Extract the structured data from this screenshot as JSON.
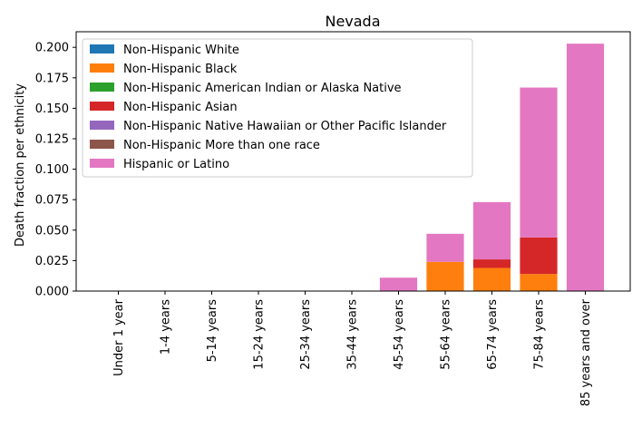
{
  "chart_data": {
    "type": "bar",
    "stacked": true,
    "title": "Nevada",
    "xlabel": "",
    "ylabel": "Death fraction per ethnicity",
    "ylim": [
      0,
      0.2128
    ],
    "yticks": [
      "0.000",
      "0.025",
      "0.050",
      "0.075",
      "0.100",
      "0.125",
      "0.150",
      "0.175",
      "0.200"
    ],
    "grid": false,
    "legend_position": "top-left",
    "categories": [
      "Under 1 year",
      "1-4 years",
      "5-14 years",
      "15-24 years",
      "25-34 years",
      "35-44 years",
      "45-54 years",
      "55-64 years",
      "65-74 years",
      "75-84 years",
      "85 years and over"
    ],
    "series": [
      {
        "name": "Non-Hispanic White",
        "color": "#1f77b4",
        "values": [
          0,
          0,
          0,
          0,
          0,
          0,
          0,
          0,
          0,
          0,
          0
        ]
      },
      {
        "name": "Non-Hispanic Black",
        "color": "#ff7f0e",
        "values": [
          0,
          0,
          0,
          0,
          0,
          0,
          0,
          0.024,
          0.019,
          0.014,
          0
        ]
      },
      {
        "name": "Non-Hispanic American Indian or Alaska Native",
        "color": "#2ca02c",
        "values": [
          0,
          0,
          0,
          0,
          0,
          0,
          0,
          0,
          0,
          0,
          0
        ]
      },
      {
        "name": "Non-Hispanic Asian",
        "color": "#d62728",
        "values": [
          0,
          0,
          0,
          0,
          0,
          0,
          0,
          0,
          0.007,
          0.03,
          0
        ]
      },
      {
        "name": "Non-Hispanic Native Hawaiian or Other Pacific Islander",
        "color": "#9467bd",
        "values": [
          0,
          0,
          0,
          0,
          0,
          0,
          0,
          0,
          0,
          0,
          0
        ]
      },
      {
        "name": "Non-Hispanic More than one race",
        "color": "#8c564b",
        "values": [
          0,
          0,
          0,
          0,
          0,
          0,
          0,
          0,
          0,
          0,
          0
        ]
      },
      {
        "name": "Hispanic or Latino",
        "color": "#e377c2",
        "values": [
          0,
          0,
          0,
          0,
          0,
          0,
          0.011,
          0.023,
          0.047,
          0.123,
          0.203
        ]
      }
    ]
  }
}
